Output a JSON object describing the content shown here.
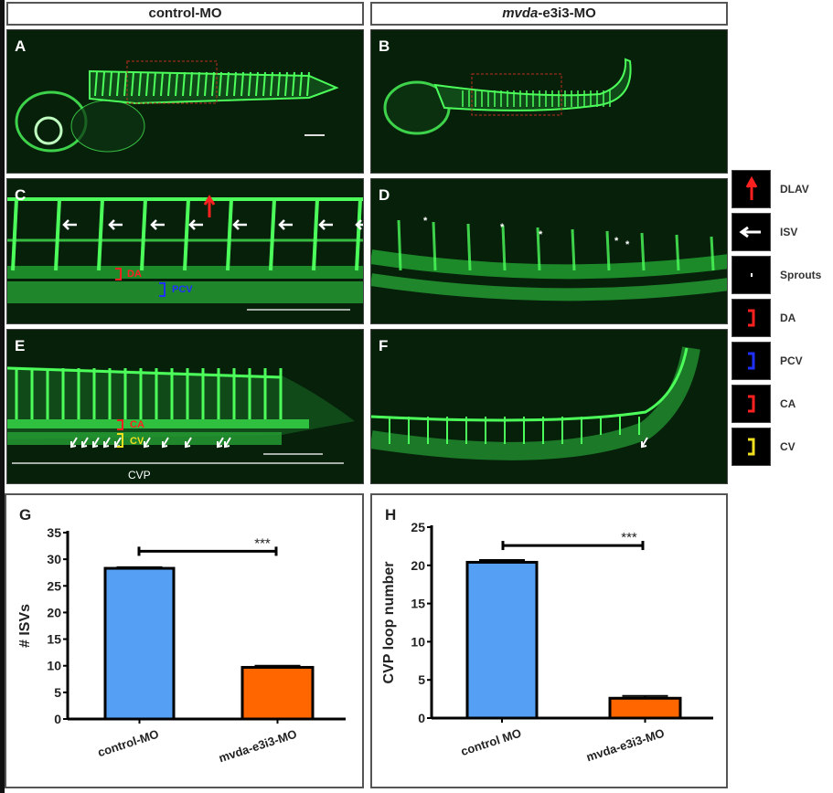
{
  "headers": {
    "left": "control-MO",
    "right_italic": "mvda",
    "right_rest": "-e3i3-MO"
  },
  "panels": {
    "A": "A",
    "B": "B",
    "C": "C",
    "D": "D",
    "E": "E",
    "F": "F",
    "G": "G",
    "H": "H"
  },
  "annotations": {
    "da": "DA",
    "pcv": "PCV",
    "ca": "CA",
    "cv": "CV",
    "cvp": "CVP",
    "sprout": "*"
  },
  "legend": [
    {
      "label": "DLAV",
      "icon": "red-arrow-up-icon",
      "color": "#ff2020"
    },
    {
      "label": "ISV",
      "icon": "white-arrow-left-icon",
      "color": "#ffffff"
    },
    {
      "label": "Sprouts",
      "icon": "asterisk-icon",
      "color": "#ffffff"
    },
    {
      "label": "DA",
      "icon": "red-bracket-icon",
      "color": "#ff2020"
    },
    {
      "label": "PCV",
      "icon": "blue-bracket-icon",
      "color": "#2030ff"
    },
    {
      "label": "CA",
      "icon": "red-bracket-icon",
      "color": "#ff2020"
    },
    {
      "label": "CV",
      "icon": "yellow-bracket-icon",
      "color": "#f0e020"
    }
  ],
  "chart_data": [
    {
      "type": "bar",
      "panel": "G",
      "ylabel": "# ISVs",
      "categories": [
        "control-MO",
        "mvda-e3i3-MO"
      ],
      "values": [
        28.3,
        9.7
      ],
      "errors": [
        0.2,
        0.3
      ],
      "colors": [
        "#559ff5",
        "#ff6600"
      ],
      "ylim": [
        0,
        35
      ],
      "yticks": [
        0,
        5,
        10,
        15,
        20,
        25,
        30,
        35
      ],
      "significance": "***",
      "sig_y": 31.5
    },
    {
      "type": "bar",
      "panel": "H",
      "ylabel": "CVP loop number",
      "categories": [
        "control MO",
        "mvda-e3i3-MO"
      ],
      "values": [
        20.4,
        2.6
      ],
      "errors": [
        0.3,
        0.3
      ],
      "colors": [
        "#559ff5",
        "#ff6600"
      ],
      "ylim": [
        0,
        25
      ],
      "yticks": [
        0,
        5,
        10,
        15,
        20,
        25
      ],
      "significance": "***",
      "sig_y": 22.6
    }
  ]
}
